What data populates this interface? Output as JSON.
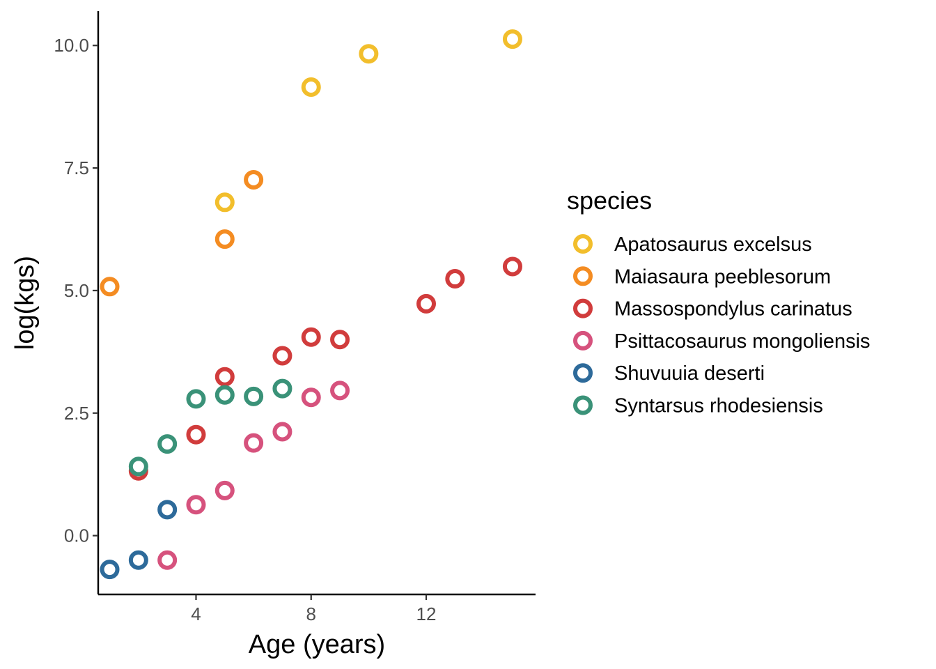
{
  "chart_data": {
    "type": "scatter",
    "title": "",
    "xlabel": "Age (years)",
    "ylabel": "log(kgs)",
    "xlim": [
      0.6,
      15.8
    ],
    "ylim": [
      -1.2,
      10.7
    ],
    "x_ticks": [
      4,
      8,
      12
    ],
    "y_ticks": [
      0,
      2.5,
      5,
      7.5,
      10
    ],
    "x_tick_labels": [
      "4",
      "8",
      "12"
    ],
    "y_tick_labels": [
      "0.0",
      "2.5",
      "5.0",
      "7.5",
      "10.0"
    ],
    "grid": false,
    "legend": {
      "title": "species",
      "position": "right"
    },
    "series": [
      {
        "name": "Apatosaurus excelsus",
        "color": "#F2BE2C",
        "points": [
          [
            5,
            6.8
          ],
          [
            8,
            9.15
          ],
          [
            10,
            9.83
          ],
          [
            15,
            10.13
          ]
        ]
      },
      {
        "name": "Maiasaura peeblesorum",
        "color": "#F48C22",
        "points": [
          [
            1,
            5.08
          ],
          [
            5,
            6.05
          ],
          [
            6,
            7.26
          ]
        ]
      },
      {
        "name": "Massospondylus carinatus",
        "color": "#D13C3C",
        "points": [
          [
            2,
            1.32
          ],
          [
            4,
            2.06
          ],
          [
            5,
            3.24
          ],
          [
            7,
            3.67
          ],
          [
            8,
            4.05
          ],
          [
            9,
            4.0
          ],
          [
            12,
            4.73
          ],
          [
            13,
            5.24
          ],
          [
            15,
            5.49
          ]
        ]
      },
      {
        "name": "Psittacosaurus mongoliensis",
        "color": "#D6527D",
        "points": [
          [
            3,
            -0.5
          ],
          [
            4,
            0.63
          ],
          [
            5,
            0.92
          ],
          [
            6,
            1.89
          ],
          [
            7,
            2.12
          ],
          [
            8,
            2.82
          ],
          [
            9,
            2.96
          ]
        ]
      },
      {
        "name": "Shuvuuia deserti",
        "color": "#2D6A9A",
        "points": [
          [
            1,
            -0.69
          ],
          [
            2,
            -0.5
          ],
          [
            3,
            0.53
          ]
        ]
      },
      {
        "name": "Syntarsus rhodesiensis",
        "color": "#3A9278",
        "points": [
          [
            2,
            1.41
          ],
          [
            3,
            1.87
          ],
          [
            4,
            2.79
          ],
          [
            5,
            2.87
          ],
          [
            6,
            2.84
          ],
          [
            7,
            3.0
          ]
        ]
      }
    ]
  }
}
